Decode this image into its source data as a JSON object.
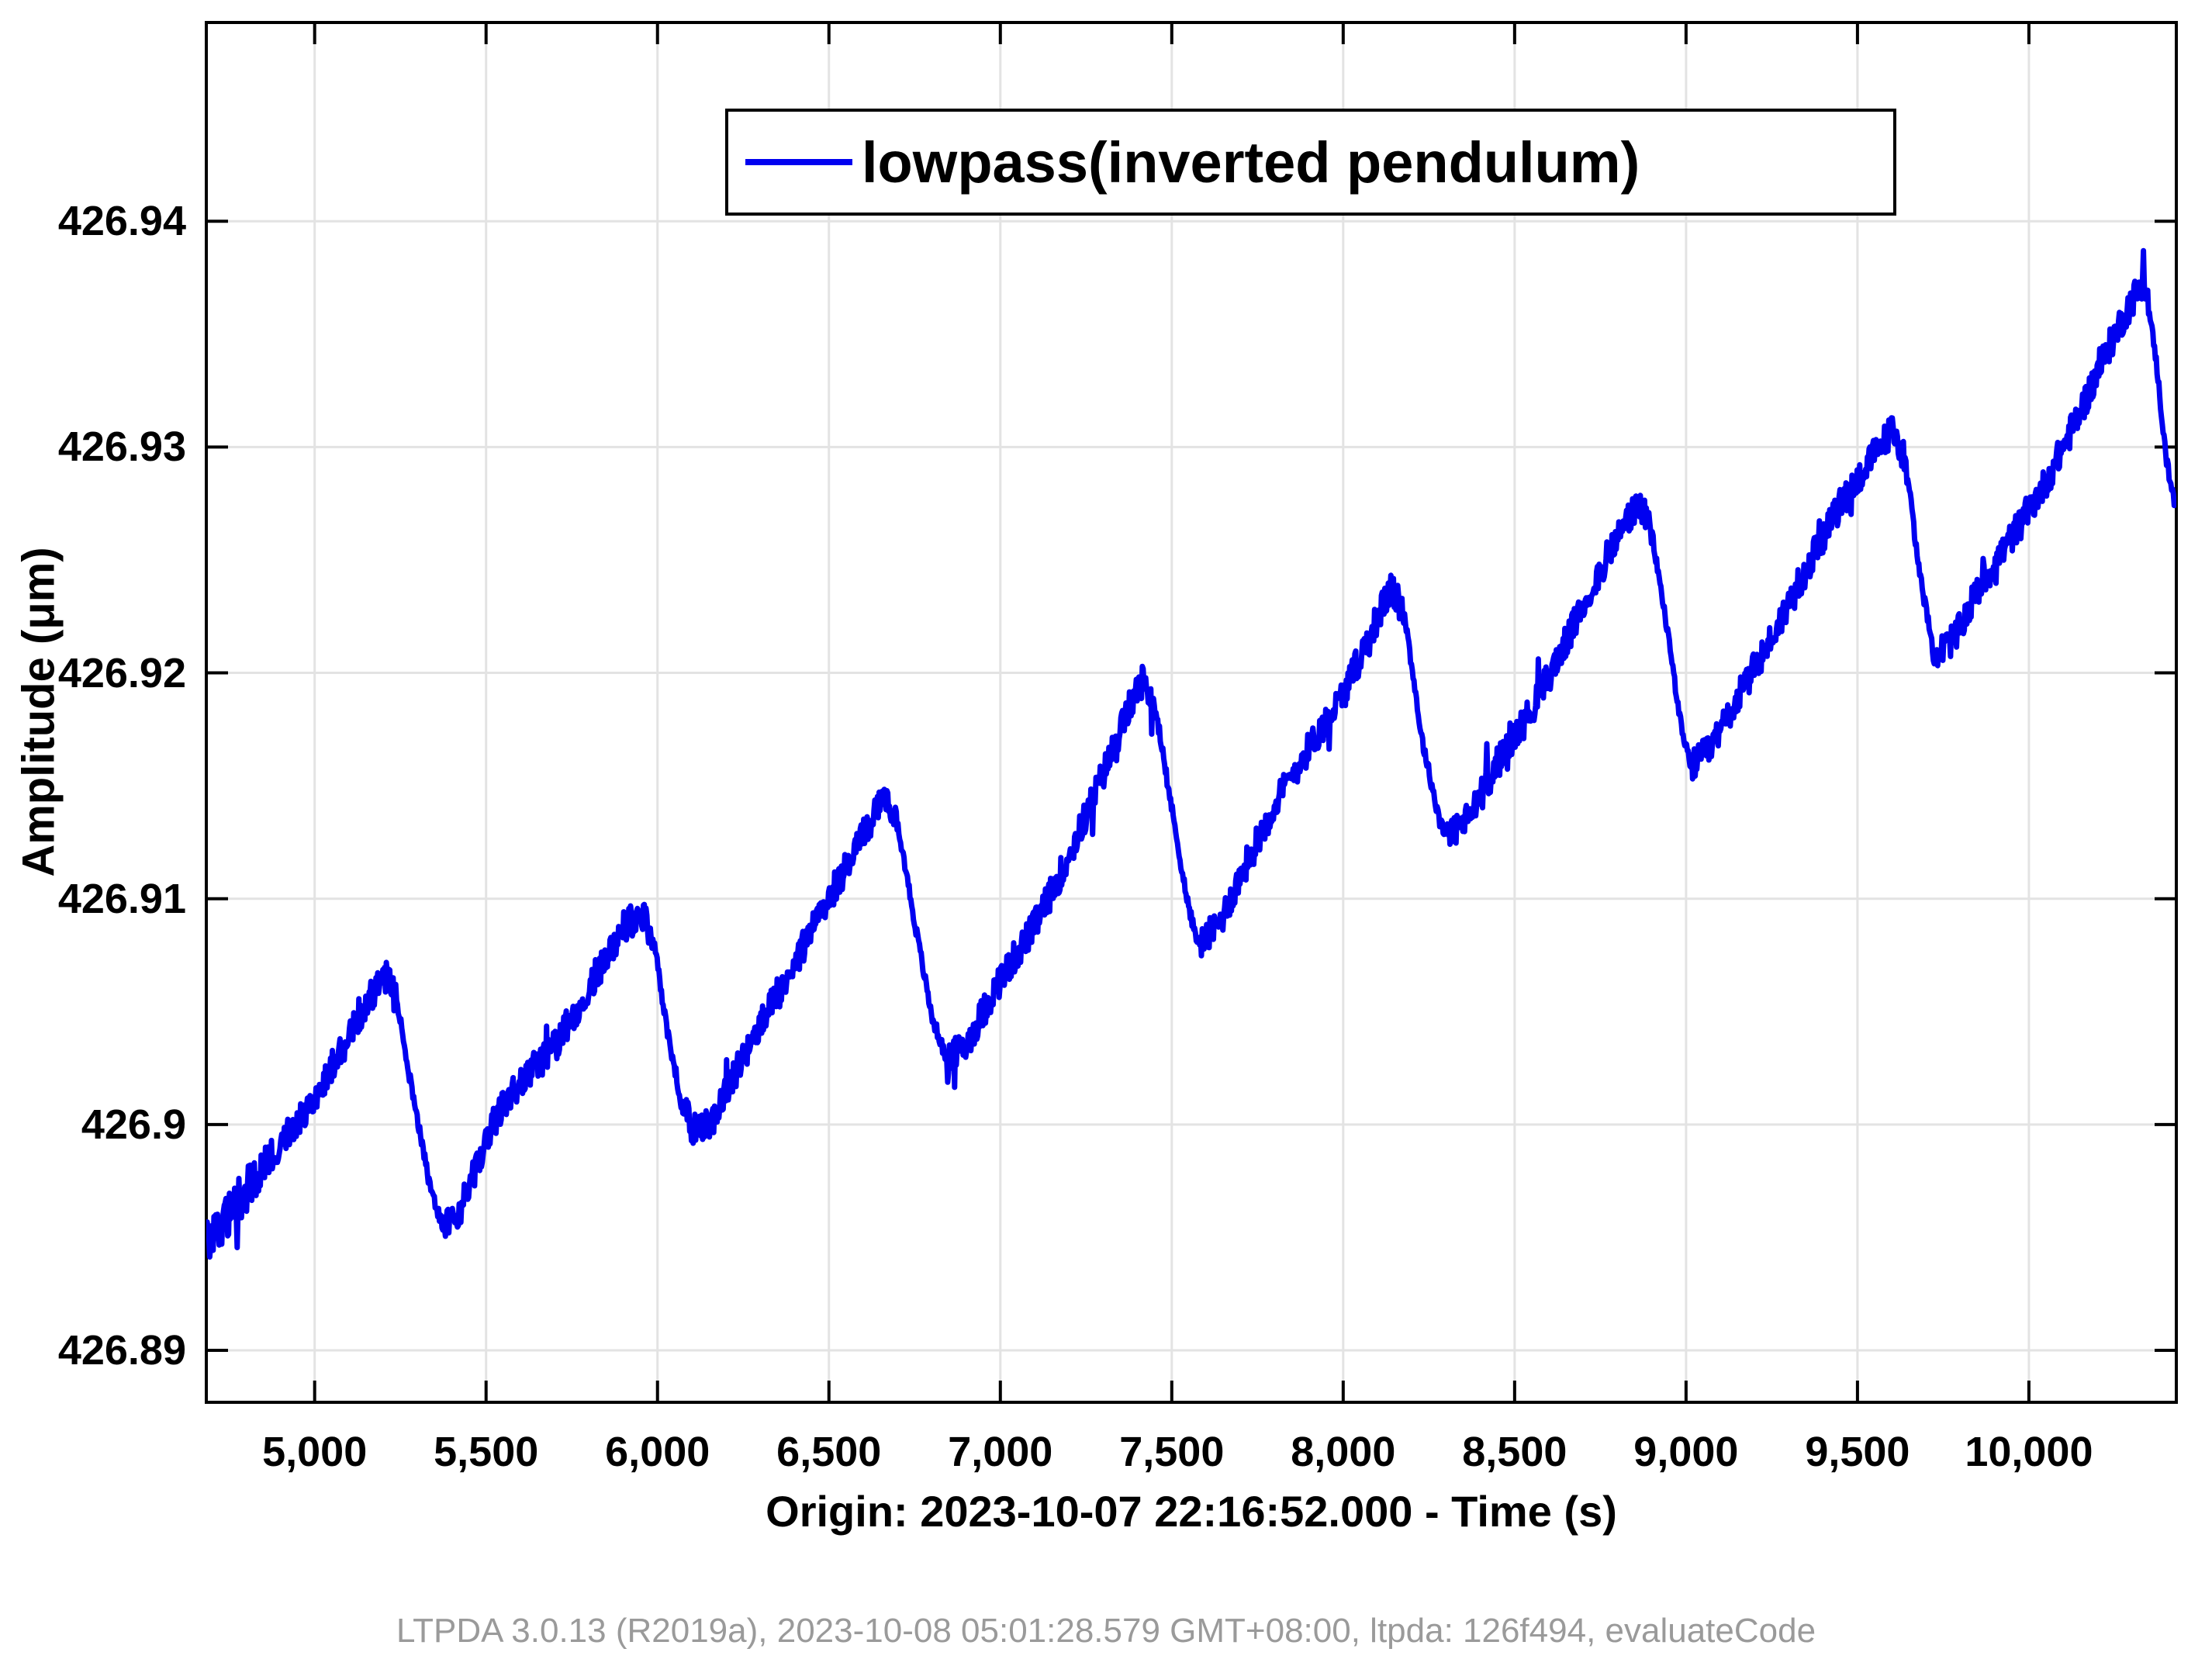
{
  "figure": {
    "background": "#ffffff",
    "axis_color": "#000000",
    "grid_color": "#e3e3e3",
    "footer": "LTPDA 3.0.13 (R2019a), 2023-10-08 05:01:28.579 GMT+08:00, ltpda: 126f494, evaluateCode"
  },
  "legend": {
    "label": "lowpass(inverted pendulum)",
    "line_color": "#0000f0"
  },
  "chart_data": {
    "type": "line",
    "title": "",
    "xlabel": "Origin: 2023-10-07 22:16:52.000 - Time  (s)",
    "ylabel": "Amplitude  (μm)",
    "xlim": [
      4684,
      10430
    ],
    "ylim": [
      426.8877,
      426.9488
    ],
    "grid": true,
    "legend_position": "top-center-inside",
    "xticks": {
      "values": [
        5000,
        5500,
        6000,
        6500,
        7000,
        7500,
        8000,
        8500,
        9000,
        9500,
        10000
      ],
      "labels": [
        "5,000",
        "5,500",
        "6,000",
        "6,500",
        "7,000",
        "7,500",
        "8,000",
        "8,500",
        "9,000",
        "9,500",
        "10,000"
      ]
    },
    "yticks": {
      "values": [
        426.89,
        426.9,
        426.91,
        426.92,
        426.93,
        426.94
      ],
      "labels": [
        "426.89",
        "426.9",
        "426.91",
        "426.92",
        "426.93",
        "426.94"
      ]
    },
    "series": [
      {
        "name": "lowpass(inverted pendulum)",
        "color": "#0000f0",
        "noise_band": 0.0008,
        "shape": "noisy rising sawtooth, period ~730 s",
        "points": [
          [
            4684,
            426.895
          ],
          [
            4800,
            426.8972
          ],
          [
            5000,
            426.9012
          ],
          [
            5100,
            426.904
          ],
          [
            5170,
            426.906
          ],
          [
            5210,
            426.9067
          ],
          [
            5240,
            426.9055
          ],
          [
            5290,
            426.901
          ],
          [
            5340,
            426.897
          ],
          [
            5375,
            426.8954
          ],
          [
            5420,
            426.896
          ],
          [
            5520,
            426.9
          ],
          [
            5600,
            426.902
          ],
          [
            5700,
            426.9035
          ],
          [
            5800,
            426.906
          ],
          [
            5900,
            426.9085
          ],
          [
            5950,
            426.9092
          ],
          [
            5990,
            426.908
          ],
          [
            6030,
            426.904
          ],
          [
            6070,
            426.9008
          ],
          [
            6105,
            426.8998
          ],
          [
            6150,
            426.9
          ],
          [
            6250,
            426.903
          ],
          [
            6400,
            426.907
          ],
          [
            6500,
            426.91
          ],
          [
            6600,
            426.913
          ],
          [
            6660,
            426.9146
          ],
          [
            6700,
            426.9135
          ],
          [
            6750,
            426.909
          ],
          [
            6800,
            426.9048
          ],
          [
            6845,
            426.9028
          ],
          [
            6900,
            426.9035
          ],
          [
            7000,
            426.9065
          ],
          [
            7100,
            426.909
          ],
          [
            7200,
            426.912
          ],
          [
            7300,
            426.9155
          ],
          [
            7380,
            426.9185
          ],
          [
            7415,
            426.9196
          ],
          [
            7450,
            426.9185
          ],
          [
            7500,
            426.914
          ],
          [
            7550,
            426.9095
          ],
          [
            7580,
            426.908
          ],
          [
            7640,
            426.909
          ],
          [
            7700,
            426.911
          ],
          [
            7800,
            426.914
          ],
          [
            7900,
            426.9165
          ],
          [
            8000,
            426.919
          ],
          [
            8100,
            426.9225
          ],
          [
            8140,
            426.9238
          ],
          [
            8180,
            426.9225
          ],
          [
            8230,
            426.917
          ],
          [
            8280,
            426.9135
          ],
          [
            8310,
            426.9127
          ],
          [
            8370,
            426.9135
          ],
          [
            8450,
            426.916
          ],
          [
            8550,
            426.9185
          ],
          [
            8650,
            426.9215
          ],
          [
            8750,
            426.9245
          ],
          [
            8830,
            426.9268
          ],
          [
            8865,
            426.9274
          ],
          [
            8900,
            426.9262
          ],
          [
            8950,
            426.9215
          ],
          [
            8990,
            426.9172
          ],
          [
            9015,
            426.916
          ],
          [
            9070,
            426.9168
          ],
          [
            9150,
            426.919
          ],
          [
            9250,
            426.9215
          ],
          [
            9350,
            426.9245
          ],
          [
            9450,
            426.9275
          ],
          [
            9550,
            426.9298
          ],
          [
            9600,
            426.9308
          ],
          [
            9640,
            426.9295
          ],
          [
            9680,
            426.9245
          ],
          [
            9720,
            426.921
          ],
          [
            9735,
            426.9207
          ],
          [
            9790,
            426.9215
          ],
          [
            9850,
            426.9235
          ],
          [
            9950,
            426.926
          ],
          [
            10050,
            426.9285
          ],
          [
            10150,
            426.9315
          ],
          [
            10250,
            426.9348
          ],
          [
            10310,
            426.9366
          ],
          [
            10340,
            426.937
          ],
          [
            10370,
            426.934
          ],
          [
            10400,
            426.9295
          ],
          [
            10430,
            426.9272
          ]
        ]
      }
    ]
  }
}
